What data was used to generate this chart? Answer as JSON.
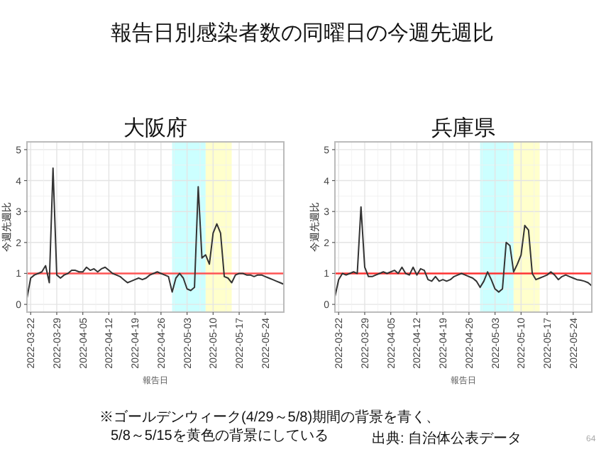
{
  "chart_data": [
    {
      "type": "other",
      "title": "報告日別感染者数の同曜日の今週先週比",
      "annotations": [
        "※ゴールデンウィーク(4/29～5/8)期間の背景を青く、",
        "5/8～5/15を黄色の背景にしている",
        "出典: 自治体公表データ",
        "64"
      ]
    },
    {
      "type": "line",
      "title": "大阪府",
      "xlabel": "報告日",
      "ylabel": "今週先週比",
      "grid": true,
      "x": [
        "2022-03-21",
        "2022-03-22",
        "2022-03-23",
        "2022-03-24",
        "2022-03-25",
        "2022-03-26",
        "2022-03-27",
        "2022-03-28",
        "2022-03-29",
        "2022-03-30",
        "2022-03-31",
        "2022-04-01",
        "2022-04-02",
        "2022-04-03",
        "2022-04-04",
        "2022-04-05",
        "2022-04-06",
        "2022-04-07",
        "2022-04-08",
        "2022-04-09",
        "2022-04-10",
        "2022-04-11",
        "2022-04-12",
        "2022-04-13",
        "2022-04-14",
        "2022-04-15",
        "2022-04-16",
        "2022-04-17",
        "2022-04-18",
        "2022-04-19",
        "2022-04-20",
        "2022-04-21",
        "2022-04-22",
        "2022-04-23",
        "2022-04-24",
        "2022-04-25",
        "2022-04-26",
        "2022-04-27",
        "2022-04-28",
        "2022-04-29",
        "2022-04-30",
        "2022-05-01",
        "2022-05-02",
        "2022-05-03",
        "2022-05-04",
        "2022-05-05",
        "2022-05-06",
        "2022-05-07",
        "2022-05-08",
        "2022-05-09",
        "2022-05-10",
        "2022-05-11",
        "2022-05-12",
        "2022-05-13",
        "2022-05-14",
        "2022-05-15",
        "2022-05-16",
        "2022-05-17",
        "2022-05-18",
        "2022-05-19",
        "2022-05-20",
        "2022-05-21",
        "2022-05-22",
        "2022-05-23",
        "2022-05-24",
        "2022-05-25",
        "2022-05-26",
        "2022-05-27",
        "2022-05-28",
        "2022-05-29"
      ],
      "series": [
        {
          "color": "#333333",
          "values": [
            0.2,
            0.85,
            0.95,
            1.0,
            1.05,
            1.25,
            0.7,
            4.4,
            0.95,
            0.85,
            0.95,
            1.0,
            1.1,
            1.1,
            1.05,
            1.05,
            1.2,
            1.1,
            1.15,
            1.05,
            1.15,
            1.2,
            1.1,
            1.0,
            0.95,
            0.9,
            0.8,
            0.7,
            0.75,
            0.8,
            0.85,
            0.8,
            0.85,
            0.95,
            1.0,
            1.05,
            1.0,
            0.95,
            0.9,
            0.4,
            0.85,
            1.0,
            0.85,
            0.5,
            0.45,
            0.55,
            3.8,
            1.5,
            1.6,
            1.3,
            2.3,
            2.6,
            2.3,
            0.9,
            0.85,
            0.7,
            0.95,
            1.0,
            1.0,
            0.95,
            0.95,
            0.9,
            0.95,
            0.95,
            0.9,
            0.85,
            0.8,
            0.75,
            0.7,
            0.65
          ]
        }
      ],
      "xlim": [
        "2022-03-21",
        "2022-05-29"
      ],
      "xticks": [
        "2022-03-22",
        "2022-03-29",
        "2022-04-05",
        "2022-04-12",
        "2022-04-19",
        "2022-04-26",
        "2022-05-03",
        "2022-05-10",
        "2022-05-17",
        "2022-05-24"
      ],
      "ylim": [
        -0.25,
        5.25
      ],
      "yticks": [
        0,
        1,
        2,
        3,
        4,
        5
      ],
      "ref_lines": [
        {
          "axis": "y",
          "value": 1,
          "color": "#ff5555"
        }
      ],
      "bands": [
        {
          "axis": "x",
          "from": "2022-04-29",
          "to": "2022-05-08",
          "color": "#ccffff"
        },
        {
          "axis": "x",
          "from": "2022-05-08",
          "to": "2022-05-15",
          "color": "#ffffcc"
        }
      ]
    },
    {
      "type": "line",
      "title": "兵庫県",
      "xlabel": "報告日",
      "ylabel": "今週先週比",
      "grid": true,
      "x": [
        "2022-03-21",
        "2022-03-22",
        "2022-03-23",
        "2022-03-24",
        "2022-03-25",
        "2022-03-26",
        "2022-03-27",
        "2022-03-28",
        "2022-03-29",
        "2022-03-30",
        "2022-03-31",
        "2022-04-01",
        "2022-04-02",
        "2022-04-03",
        "2022-04-04",
        "2022-04-05",
        "2022-04-06",
        "2022-04-07",
        "2022-04-08",
        "2022-04-09",
        "2022-04-10",
        "2022-04-11",
        "2022-04-12",
        "2022-04-13",
        "2022-04-14",
        "2022-04-15",
        "2022-04-16",
        "2022-04-17",
        "2022-04-18",
        "2022-04-19",
        "2022-04-20",
        "2022-04-21",
        "2022-04-22",
        "2022-04-23",
        "2022-04-24",
        "2022-04-25",
        "2022-04-26",
        "2022-04-27",
        "2022-04-28",
        "2022-04-29",
        "2022-04-30",
        "2022-05-01",
        "2022-05-02",
        "2022-05-03",
        "2022-05-04",
        "2022-05-05",
        "2022-05-06",
        "2022-05-07",
        "2022-05-08",
        "2022-05-09",
        "2022-05-10",
        "2022-05-11",
        "2022-05-12",
        "2022-05-13",
        "2022-05-14",
        "2022-05-15",
        "2022-05-16",
        "2022-05-17",
        "2022-05-18",
        "2022-05-19",
        "2022-05-20",
        "2022-05-21",
        "2022-05-22",
        "2022-05-23",
        "2022-05-24",
        "2022-05-25",
        "2022-05-26",
        "2022-05-27",
        "2022-05-28",
        "2022-05-29"
      ],
      "series": [
        {
          "color": "#333333",
          "values": [
            0.25,
            0.8,
            1.0,
            0.95,
            1.0,
            1.05,
            1.0,
            3.15,
            1.2,
            0.9,
            0.9,
            0.95,
            1.0,
            1.05,
            1.0,
            1.05,
            1.1,
            1.0,
            1.2,
            1.0,
            0.95,
            1.2,
            0.95,
            1.15,
            1.1,
            0.8,
            0.75,
            0.9,
            0.75,
            0.8,
            0.75,
            0.8,
            0.9,
            0.95,
            1.0,
            0.95,
            0.9,
            0.85,
            0.75,
            0.55,
            0.75,
            1.05,
            0.8,
            0.5,
            0.4,
            0.5,
            2.0,
            1.9,
            1.05,
            1.3,
            1.6,
            2.55,
            2.4,
            1.0,
            0.8,
            0.85,
            0.9,
            0.95,
            1.05,
            0.95,
            0.8,
            0.9,
            0.95,
            0.9,
            0.85,
            0.8,
            0.78,
            0.75,
            0.7,
            0.6
          ]
        }
      ],
      "xlim": [
        "2022-03-21",
        "2022-05-29"
      ],
      "xticks": [
        "2022-03-22",
        "2022-03-29",
        "2022-04-05",
        "2022-04-12",
        "2022-04-19",
        "2022-04-26",
        "2022-05-03",
        "2022-05-10",
        "2022-05-17",
        "2022-05-24"
      ],
      "ylim": [
        -0.25,
        5.25
      ],
      "yticks": [
        0,
        1,
        2,
        3,
        4,
        5
      ],
      "ref_lines": [
        {
          "axis": "y",
          "value": 1,
          "color": "#ff3333"
        }
      ],
      "bands": [
        {
          "axis": "x",
          "from": "2022-04-29",
          "to": "2022-05-08",
          "color": "#ccffff"
        },
        {
          "axis": "x",
          "from": "2022-05-08",
          "to": "2022-05-15",
          "color": "#ffffcc"
        }
      ]
    }
  ]
}
